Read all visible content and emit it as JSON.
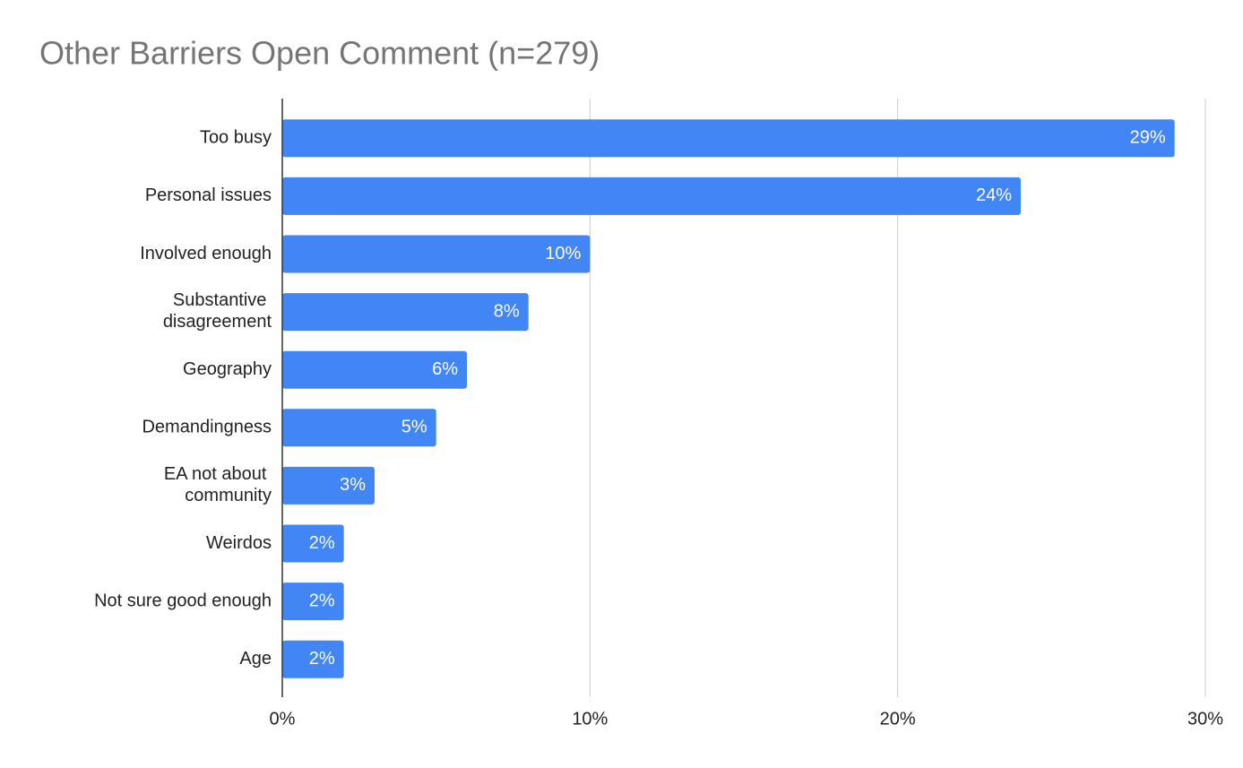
{
  "chart_data": {
    "type": "bar",
    "orientation": "horizontal",
    "title": "Other Barriers Open Comment (n=279)",
    "categories": [
      "Too busy",
      "Personal issues",
      "Involved enough",
      "Substantive disagreement",
      "Geography",
      "Demandingness",
      "EA not about community",
      "Weirdos",
      "Not sure good enough",
      "Age"
    ],
    "values": [
      29,
      24,
      10,
      8,
      6,
      5,
      3,
      2,
      2,
      2
    ],
    "value_labels": [
      "29%",
      "24%",
      "10%",
      "8%",
      "6%",
      "5%",
      "3%",
      "2%",
      "2%",
      "2%"
    ],
    "color": "#4285f4",
    "xlim": [
      0,
      30
    ],
    "xticks": [
      {
        "value": 0,
        "label": "0%"
      },
      {
        "value": 10,
        "label": "10%"
      },
      {
        "value": 20,
        "label": "20%"
      },
      {
        "value": 30,
        "label": "30%"
      }
    ],
    "grid": true
  }
}
